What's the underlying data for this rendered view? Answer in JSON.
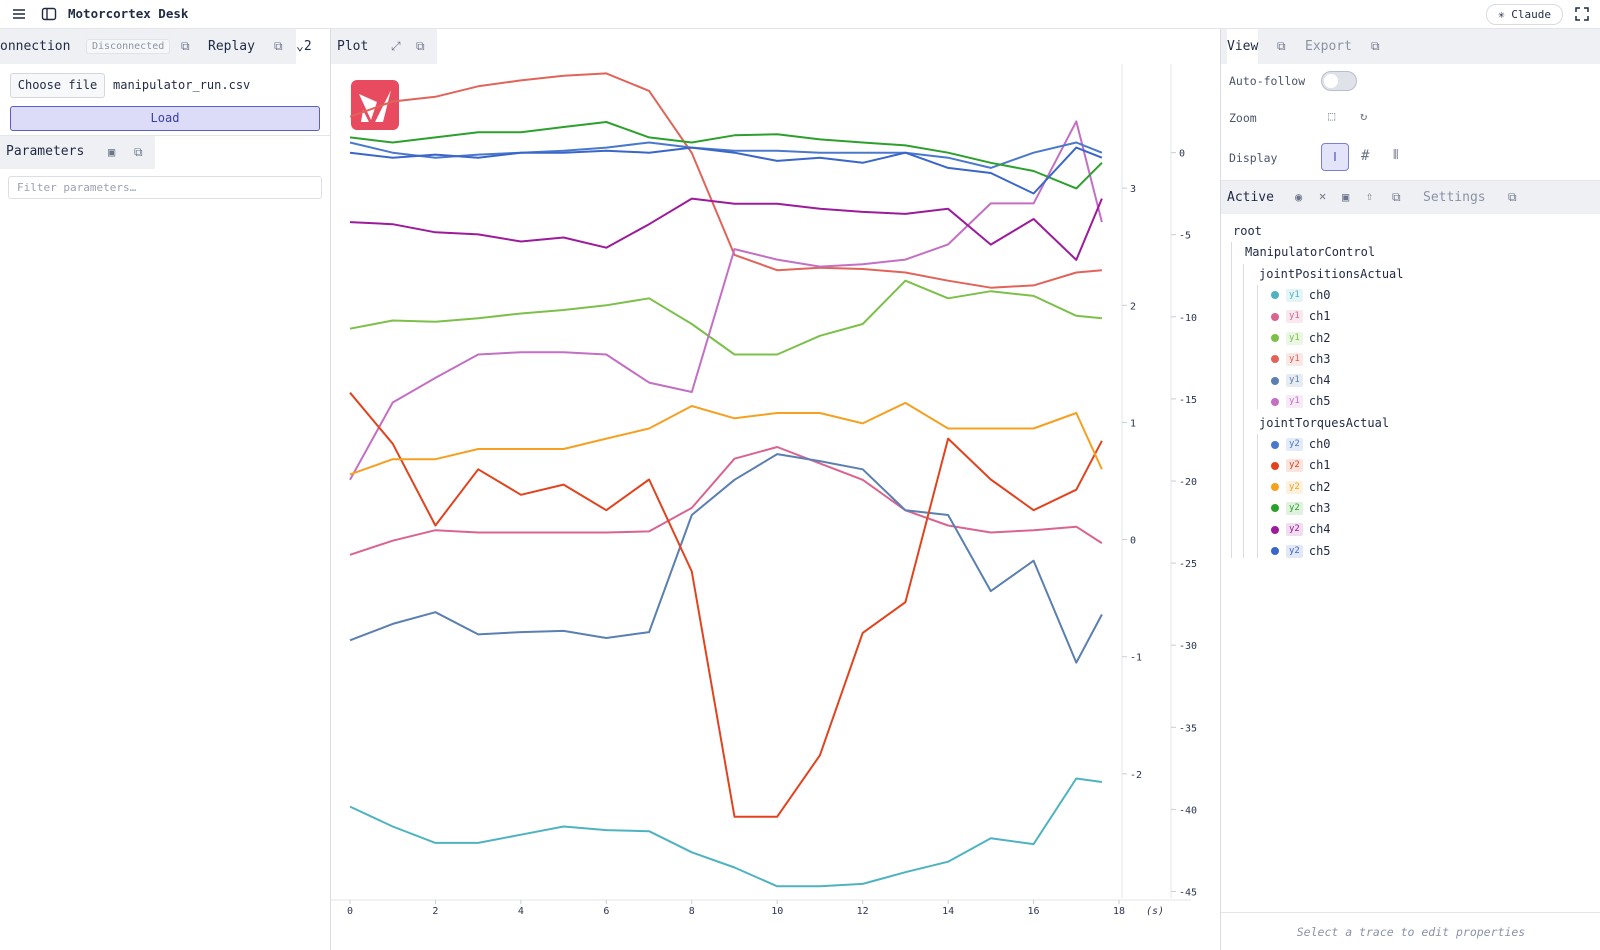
{
  "app": {
    "title": "Motorcortex Desk",
    "assistant": "Claude"
  },
  "left": {
    "tabs": [
      "onnection",
      "Replay"
    ],
    "status": "Disconnected",
    "tab_count": "2",
    "choose_file": "Choose file",
    "file_name": "manipulator_run.csv",
    "load": "Load",
    "parameters": "Parameters",
    "filter_placeholder": "Filter parameters…"
  },
  "plot_tab": "Plot",
  "right": {
    "tabs": [
      "View",
      "Export"
    ],
    "auto_follow": "Auto-follow",
    "zoom": "Zoom",
    "display": "Display",
    "active": "Active",
    "settings": "Settings",
    "footer": "Select a trace to edit properties"
  },
  "tree": {
    "root": "root",
    "node": "ManipulatorControl",
    "groups": [
      "jointPositionsActual",
      "jointTorquesActual"
    ]
  },
  "chart_data": {
    "type": "line",
    "x": [
      0,
      1,
      2,
      3,
      4,
      5,
      6,
      7,
      8,
      9,
      10,
      11,
      12,
      13,
      14,
      15,
      16,
      17,
      17.6
    ],
    "xlim": [
      0,
      18
    ],
    "xticks": [
      0,
      2,
      4,
      6,
      8,
      10,
      12,
      14,
      16,
      18
    ],
    "x_label": "(s)",
    "ylim": [
      -3.06,
      4.06
    ],
    "yticks": [
      -2,
      -1,
      0,
      1,
      2,
      3
    ],
    "y2lim": [
      -45.4,
      5.4
    ],
    "y2ticks": [
      0,
      -5,
      -10,
      -15,
      -20,
      -25,
      -30,
      -35,
      -40,
      -45
    ],
    "grid": false,
    "series": [
      {
        "name": "ch0",
        "axis": "y1",
        "color": "#4fb3bf",
        "values": [
          -2.28,
          -2.45,
          -2.59,
          -2.59,
          -2.52,
          -2.45,
          -2.48,
          -2.49,
          -2.67,
          -2.8,
          -2.96,
          -2.96,
          -2.94,
          -2.84,
          -2.75,
          -2.55,
          -2.6,
          -2.04,
          -2.07
        ]
      },
      {
        "name": "ch1",
        "axis": "y1",
        "color": "#d9648f",
        "values": [
          -0.13,
          -0.01,
          0.08,
          0.06,
          0.06,
          0.06,
          0.06,
          0.07,
          0.27,
          0.69,
          0.79,
          0.65,
          0.51,
          0.25,
          0.12,
          0.06,
          0.08,
          0.11,
          -0.03
        ]
      },
      {
        "name": "ch2",
        "axis": "y1",
        "color": "#7cc04a",
        "values": [
          1.8,
          1.87,
          1.86,
          1.89,
          1.93,
          1.96,
          2.0,
          2.06,
          1.84,
          1.58,
          1.58,
          1.74,
          1.84,
          2.21,
          2.06,
          2.12,
          2.08,
          1.91,
          1.89
        ]
      },
      {
        "name": "ch3",
        "axis": "y1",
        "color": "#e0645a",
        "values": [
          3.61,
          3.74,
          3.78,
          3.87,
          3.92,
          3.96,
          3.98,
          3.83,
          3.3,
          2.43,
          2.3,
          2.32,
          2.31,
          2.28,
          2.21,
          2.15,
          2.17,
          2.28,
          2.3
        ]
      },
      {
        "name": "ch4",
        "axis": "y1",
        "color": "#5b7fb0",
        "values": [
          -0.86,
          -0.72,
          -0.62,
          -0.81,
          -0.79,
          -0.78,
          -0.84,
          -0.79,
          0.21,
          0.51,
          0.73,
          0.67,
          0.6,
          0.25,
          0.21,
          -0.44,
          -0.18,
          -1.05,
          -0.64
        ]
      },
      {
        "name": "ch5",
        "axis": "y1",
        "color": "#c36fc3",
        "values": [
          0.51,
          1.17,
          1.38,
          1.58,
          1.6,
          1.6,
          1.58,
          1.34,
          1.26,
          2.48,
          2.39,
          2.33,
          2.35,
          2.39,
          2.52,
          2.87,
          2.87,
          3.57,
          2.71
        ]
      },
      {
        "name": "ch0",
        "axis": "y2",
        "color": "#4a78cc",
        "values": [
          0.62,
          0,
          -0.31,
          -0.12,
          0,
          0.12,
          0.31,
          0.62,
          0.31,
          0.12,
          0.12,
          0,
          0,
          0,
          -0.31,
          -0.93,
          0,
          0.62,
          0
        ]
      },
      {
        "name": "ch1",
        "axis": "y2",
        "color": "#e2431f",
        "values": [
          -14.62,
          -17.73,
          -22.71,
          -19.29,
          -20.84,
          -20.22,
          -21.78,
          -19.91,
          -25.51,
          -40.45,
          -40.45,
          -36.71,
          -29.25,
          -27.38,
          -17.42,
          -19.91,
          -21.78,
          -20.53,
          -17.55
        ]
      },
      {
        "name": "ch2",
        "axis": "y2",
        "color": "#f6a021",
        "values": [
          -19.6,
          -18.67,
          -18.67,
          -18.05,
          -18.05,
          -18.05,
          -17.42,
          -16.8,
          -15.43,
          -16.18,
          -15.86,
          -15.86,
          -16.49,
          -15.24,
          -16.8,
          -16.8,
          -16.8,
          -15.86,
          -19.29
        ]
      },
      {
        "name": "ch3",
        "axis": "y2",
        "color": "#2ca02c",
        "values": [
          0.93,
          0.62,
          0.93,
          1.24,
          1.24,
          1.56,
          1.87,
          0.93,
          0.62,
          1.06,
          1.12,
          0.81,
          0.62,
          0.44,
          0,
          -0.62,
          -1.12,
          -2.18,
          -0.62
        ]
      },
      {
        "name": "ch4",
        "axis": "y2",
        "color": "#9b1b9b",
        "values": [
          -4.23,
          -4.36,
          -4.85,
          -4.98,
          -5.41,
          -5.17,
          -5.79,
          -4.36,
          -2.8,
          -3.11,
          -3.11,
          -3.42,
          -3.61,
          -3.73,
          -3.42,
          -5.6,
          -4.04,
          -6.53,
          -2.8
        ]
      },
      {
        "name": "ch5",
        "axis": "y2",
        "color": "#3a66c8",
        "values": [
          0,
          -0.31,
          -0.12,
          -0.31,
          0,
          0,
          0.12,
          0,
          0.31,
          0,
          -0.5,
          -0.31,
          -0.62,
          0,
          -0.93,
          -1.24,
          -2.49,
          0.31,
          -0.31
        ]
      }
    ]
  }
}
